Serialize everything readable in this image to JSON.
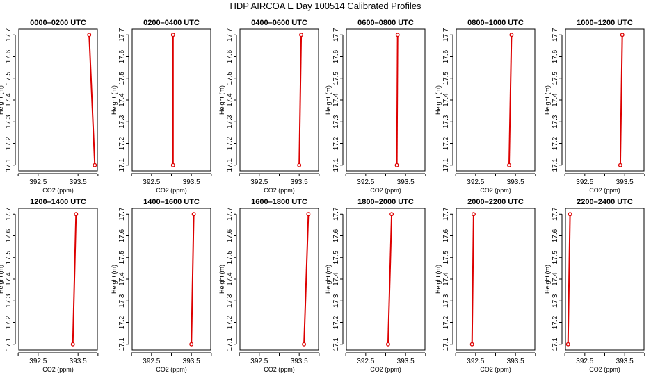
{
  "page": {
    "title": "HDP AIRCOA E  Day 100514  Calibrated Profiles"
  },
  "style": {
    "series_color": "#dd0000",
    "axis_color": "#000000"
  },
  "chart_data": [
    {
      "type": "line",
      "title": "0000–0200 UTC",
      "xlabel": "CO2 (ppm)",
      "ylabel": "Height (m)",
      "xlim": [
        392.05,
        393.95
      ],
      "ylim": [
        17.08,
        17.72
      ],
      "xticks": [
        "392.5",
        "393.5"
      ],
      "yticks": [
        "17.1",
        "17.2",
        "17.3",
        "17.4",
        "17.5",
        "17.6",
        "17.7"
      ],
      "x": [
        393.78,
        393.92
      ],
      "y": [
        17.7,
        17.1
      ]
    },
    {
      "type": "line",
      "title": "0200–0400 UTC",
      "xlabel": "CO2 (ppm)",
      "ylabel": "Height (m)",
      "xlim": [
        392.05,
        393.95
      ],
      "ylim": [
        17.08,
        17.72
      ],
      "xticks": [
        "392.5",
        "393.5"
      ],
      "yticks": [
        "17.1",
        "17.2",
        "17.3",
        "17.4",
        "17.5",
        "17.6",
        "17.7"
      ],
      "x": [
        393.04,
        393.04
      ],
      "y": [
        17.7,
        17.1
      ]
    },
    {
      "type": "line",
      "title": "0400–0600 UTC",
      "xlabel": "CO2 (ppm)",
      "ylabel": "Height (m)",
      "xlim": [
        392.05,
        393.95
      ],
      "ylim": [
        17.08,
        17.72
      ],
      "xticks": [
        "392.5",
        "393.5"
      ],
      "yticks": [
        "17.1",
        "17.2",
        "17.3",
        "17.4",
        "17.5",
        "17.6",
        "17.7"
      ],
      "x": [
        393.55,
        393.5
      ],
      "y": [
        17.7,
        17.1
      ]
    },
    {
      "type": "line",
      "title": "0600–0800 UTC",
      "xlabel": "CO2 (ppm)",
      "ylabel": "Height (m)",
      "xlim": [
        392.05,
        393.95
      ],
      "ylim": [
        17.08,
        17.72
      ],
      "xticks": [
        "392.5",
        "393.5"
      ],
      "yticks": [
        "17.1",
        "17.2",
        "17.3",
        "17.4",
        "17.5",
        "17.6",
        "17.7"
      ],
      "x": [
        393.3,
        393.28
      ],
      "y": [
        17.7,
        17.1
      ]
    },
    {
      "type": "line",
      "title": "0800–1000 UTC",
      "xlabel": "CO2 (ppm)",
      "ylabel": "Height (m)",
      "xlim": [
        392.05,
        393.95
      ],
      "ylim": [
        17.08,
        17.72
      ],
      "xticks": [
        "392.5",
        "393.5"
      ],
      "yticks": [
        "17.1",
        "17.2",
        "17.3",
        "17.4",
        "17.5",
        "17.6",
        "17.7"
      ],
      "x": [
        393.4,
        393.34
      ],
      "y": [
        17.7,
        17.1
      ]
    },
    {
      "type": "line",
      "title": "1000–1200 UTC",
      "xlabel": "CO2 (ppm)",
      "ylabel": "Height (m)",
      "xlim": [
        392.05,
        393.95
      ],
      "ylim": [
        17.08,
        17.72
      ],
      "xticks": [
        "392.5",
        "393.5"
      ],
      "yticks": [
        "17.1",
        "17.2",
        "17.3",
        "17.4",
        "17.5",
        "17.6",
        "17.7"
      ],
      "x": [
        393.44,
        393.39
      ],
      "y": [
        17.7,
        17.1
      ]
    },
    {
      "type": "line",
      "title": "1200–1400 UTC",
      "xlabel": "CO2 (ppm)",
      "ylabel": "Height (m)",
      "xlim": [
        392.05,
        393.95
      ],
      "ylim": [
        17.08,
        17.72
      ],
      "xticks": [
        "392.5",
        "393.5"
      ],
      "yticks": [
        "17.1",
        "17.2",
        "17.3",
        "17.4",
        "17.5",
        "17.6",
        "17.7"
      ],
      "x": [
        393.45,
        393.37
      ],
      "y": [
        17.7,
        17.1
      ]
    },
    {
      "type": "line",
      "title": "1400–1600 UTC",
      "xlabel": "CO2 (ppm)",
      "ylabel": "Height (m)",
      "xlim": [
        392.05,
        393.95
      ],
      "ylim": [
        17.08,
        17.72
      ],
      "xticks": [
        "392.5",
        "393.5"
      ],
      "yticks": [
        "17.1",
        "17.2",
        "17.3",
        "17.4",
        "17.5",
        "17.6",
        "17.7"
      ],
      "x": [
        393.56,
        393.5
      ],
      "y": [
        17.7,
        17.1
      ]
    },
    {
      "type": "line",
      "title": "1600–1800 UTC",
      "xlabel": "CO2 (ppm)",
      "ylabel": "Height (m)",
      "xlim": [
        392.05,
        393.95
      ],
      "ylim": [
        17.08,
        17.72
      ],
      "xticks": [
        "392.5",
        "393.5"
      ],
      "yticks": [
        "17.1",
        "17.2",
        "17.3",
        "17.4",
        "17.5",
        "17.6",
        "17.7"
      ],
      "x": [
        393.73,
        393.62
      ],
      "y": [
        17.7,
        17.1
      ]
    },
    {
      "type": "line",
      "title": "1800–2000 UTC",
      "xlabel": "CO2 (ppm)",
      "ylabel": "Height (m)",
      "xlim": [
        392.05,
        393.95
      ],
      "ylim": [
        17.08,
        17.72
      ],
      "xticks": [
        "392.5",
        "393.5"
      ],
      "yticks": [
        "17.1",
        "17.2",
        "17.3",
        "17.4",
        "17.5",
        "17.6",
        "17.7"
      ],
      "x": [
        393.15,
        393.06
      ],
      "y": [
        17.7,
        17.1
      ]
    },
    {
      "type": "line",
      "title": "2000–2200 UTC",
      "xlabel": "CO2 (ppm)",
      "ylabel": "Height (m)",
      "xlim": [
        392.05,
        393.95
      ],
      "ylim": [
        17.08,
        17.72
      ],
      "xticks": [
        "392.5",
        "393.5"
      ],
      "yticks": [
        "17.1",
        "17.2",
        "17.3",
        "17.4",
        "17.5",
        "17.6",
        "17.7"
      ],
      "x": [
        392.45,
        392.41
      ],
      "y": [
        17.7,
        17.1
      ]
    },
    {
      "type": "line",
      "title": "2200–2400 UTC",
      "xlabel": "CO2 (ppm)",
      "ylabel": "Height (m)",
      "xlim": [
        392.05,
        393.95
      ],
      "ylim": [
        17.08,
        17.72
      ],
      "xticks": [
        "392.5",
        "393.5"
      ],
      "yticks": [
        "17.1",
        "17.2",
        "17.3",
        "17.4",
        "17.5",
        "17.6",
        "17.7"
      ],
      "x": [
        392.13,
        392.08
      ],
      "y": [
        17.7,
        17.1
      ]
    }
  ]
}
